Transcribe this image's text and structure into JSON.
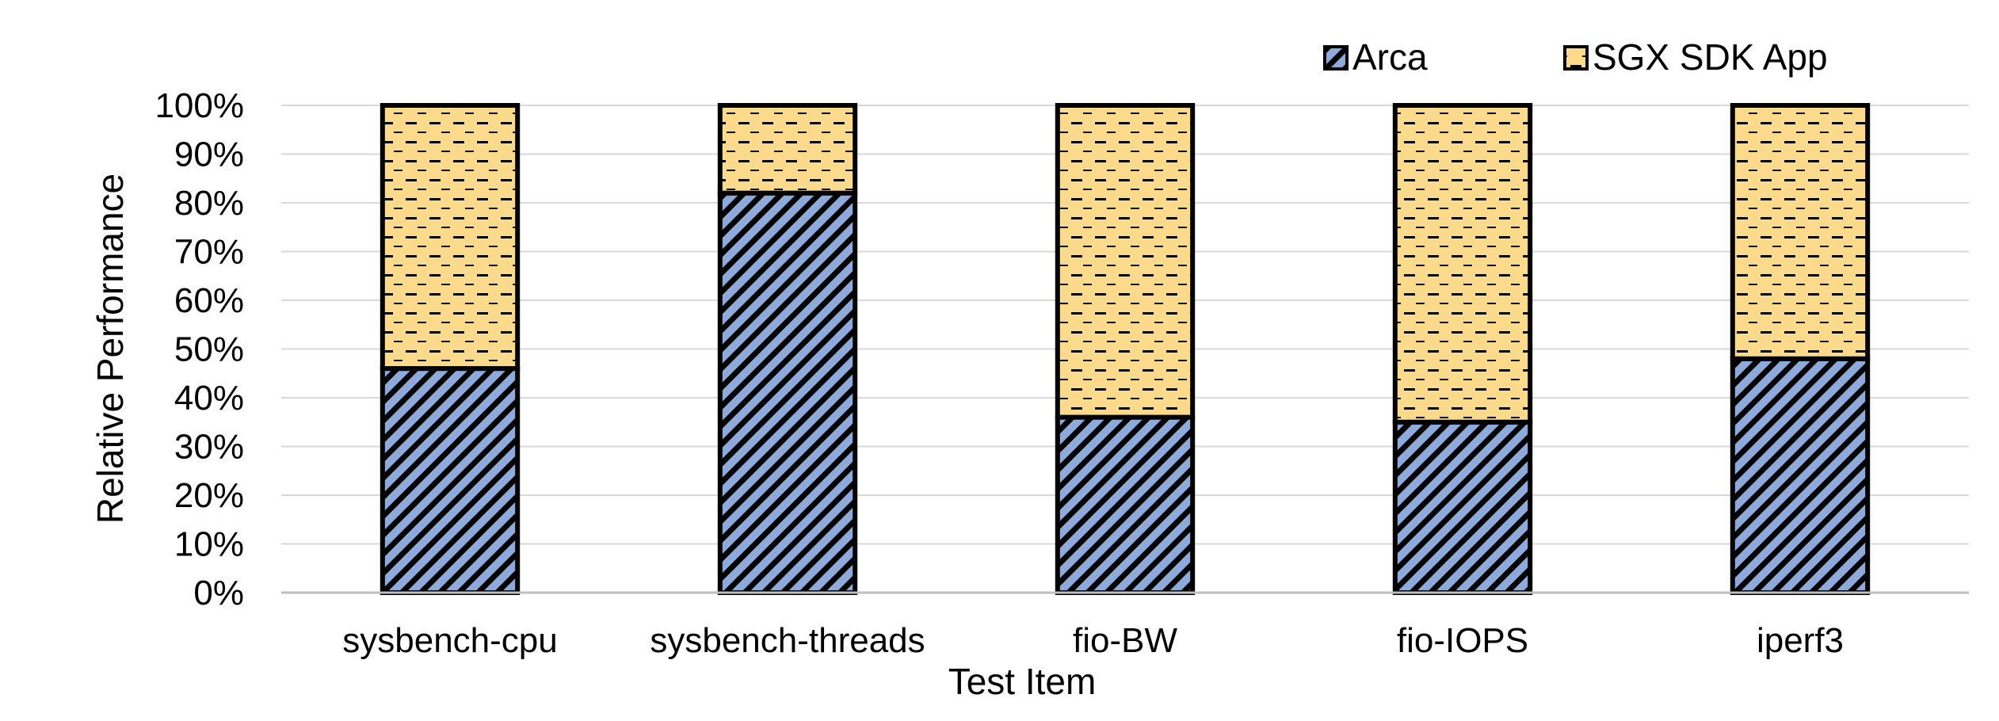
{
  "chart_data": {
    "type": "bar",
    "stacked": true,
    "percent": true,
    "categories": [
      "sysbench-cpu",
      "sysbench-threads",
      "fio-BW",
      "fio-IOPS",
      "iperf3"
    ],
    "series": [
      {
        "name": "Arca",
        "values": [
          46,
          82,
          36,
          35,
          48
        ],
        "color": "#8eaadb",
        "pattern": "diagonal-stripes"
      },
      {
        "name": "SGX SDK App",
        "values": [
          54,
          18,
          64,
          65,
          52
        ],
        "color": "#fbdb8b",
        "pattern": "horizontal-dashes"
      }
    ],
    "xlabel": "Test Item",
    "ylabel": "Relative Performance",
    "ylim": [
      0,
      100
    ],
    "yticks": [
      "0%",
      "10%",
      "20%",
      "30%",
      "40%",
      "50%",
      "60%",
      "70%",
      "80%",
      "90%",
      "100%"
    ],
    "grid": true,
    "legend_position": "top-right"
  }
}
